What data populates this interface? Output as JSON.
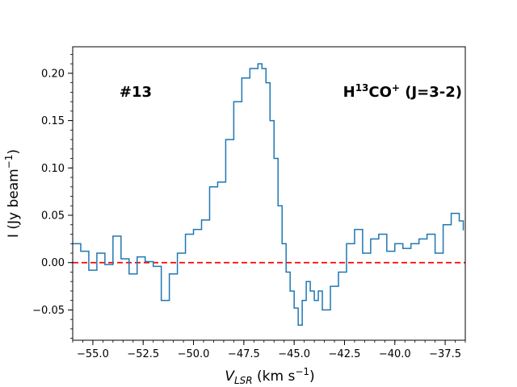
{
  "chart_data": {
    "type": "line",
    "step": true,
    "annotation_left": "#13",
    "annotation_right": {
      "main": "H",
      "sup1": "13",
      "mid": "CO",
      "sup2": "+",
      "tail": " (J=3-2)"
    },
    "xlabel": {
      "main": "V",
      "sub": "LSR",
      "units": " (km s",
      "sup": "−1",
      "close": ")"
    },
    "ylabel": {
      "main": "I (Jy beam",
      "sup": "−1",
      "close": ")"
    },
    "xlim": [
      -56.0,
      -36.5
    ],
    "ylim": [
      -0.082,
      0.228
    ],
    "xticks": [
      -55.0,
      -52.5,
      -50.0,
      -47.5,
      -45.0,
      -42.5,
      -40.0,
      -37.5
    ],
    "xtick_labels": [
      "−55.0",
      "−52.5",
      "−50.0",
      "−47.5",
      "−45.0",
      "−42.5",
      "−40.0",
      "−37.5"
    ],
    "yticks": [
      -0.05,
      0.0,
      0.05,
      0.1,
      0.15,
      0.2
    ],
    "ytick_labels": [
      "−0.05",
      "0.00",
      "0.05",
      "0.10",
      "0.15",
      "0.20"
    ],
    "baseline": 0.0,
    "colors": {
      "line": "#1f77b4",
      "baseline": "#ff0000"
    },
    "series": [
      {
        "x": [
          -56.0,
          -55.6,
          -55.2,
          -54.8,
          -54.4,
          -54.0,
          -53.6,
          -53.2,
          -52.8,
          -52.4,
          -52.0,
          -51.6,
          -51.2,
          -50.8,
          -50.4,
          -50.0,
          -49.6,
          -49.2,
          -48.8,
          -48.4,
          -48.0,
          -47.6,
          -47.2,
          -46.8,
          -46.6,
          -46.4,
          -46.2,
          -46.0,
          -45.8,
          -45.6,
          -45.4,
          -45.2,
          -45.0,
          -44.8,
          -44.6,
          -44.4,
          -44.2,
          -44.0,
          -43.8,
          -43.6,
          -43.2,
          -42.8,
          -42.4,
          -42.0,
          -41.6,
          -41.2,
          -40.8,
          -40.4,
          -40.0,
          -39.6,
          -39.2,
          -38.8,
          -38.4,
          -38.0,
          -37.6,
          -37.2,
          -36.8,
          -36.6
        ],
        "y": [
          0.02,
          0.012,
          -0.008,
          0.01,
          -0.002,
          0.028,
          0.004,
          -0.012,
          0.006,
          0.001,
          -0.004,
          -0.04,
          -0.012,
          0.01,
          0.03,
          0.035,
          0.045,
          0.08,
          0.085,
          0.13,
          0.17,
          0.195,
          0.205,
          0.21,
          0.205,
          0.19,
          0.15,
          0.11,
          0.06,
          0.02,
          -0.01,
          -0.03,
          -0.048,
          -0.066,
          -0.04,
          -0.02,
          -0.03,
          -0.04,
          -0.03,
          -0.05,
          -0.025,
          -0.01,
          0.02,
          0.035,
          0.01,
          0.025,
          0.03,
          0.012,
          0.02,
          0.015,
          0.02,
          0.025,
          0.03,
          0.01,
          0.04,
          0.052,
          0.044,
          0.034
        ]
      }
    ]
  }
}
